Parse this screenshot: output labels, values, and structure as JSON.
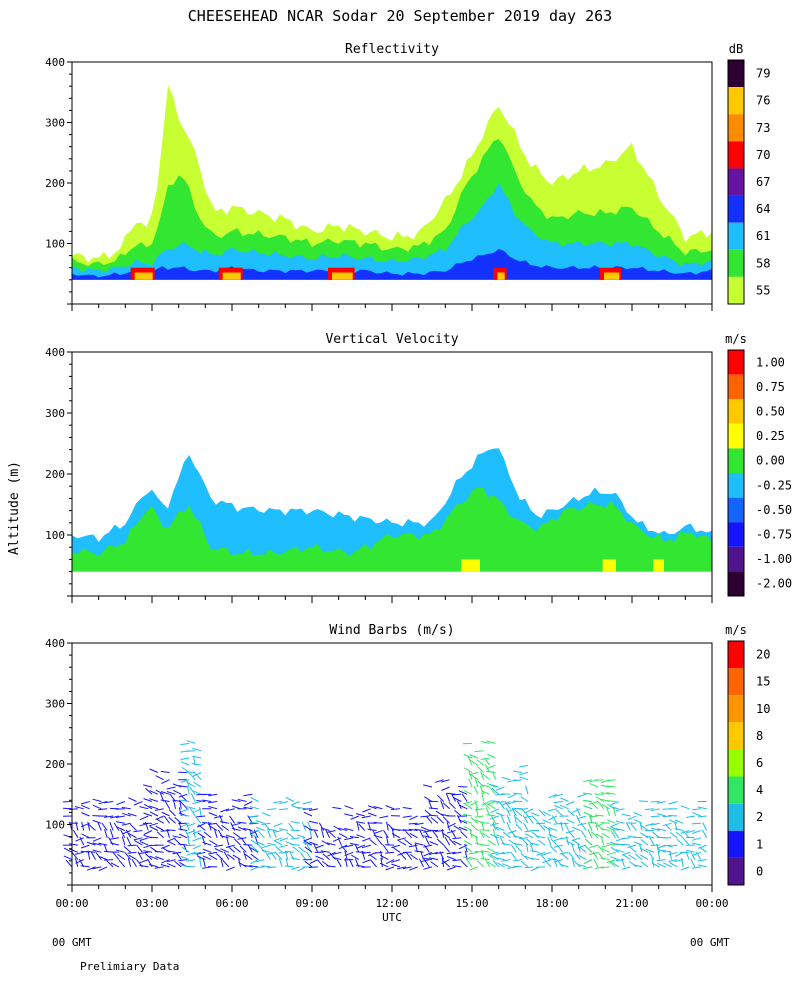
{
  "title": "CHEESEHEAD  NCAR Sodar  20 September 2019  day 263",
  "y_axis_label": "Altitude (m)",
  "x_axis_label": "UTC",
  "footer": {
    "left_gmt": "00 GMT",
    "right_gmt": "00 GMT",
    "note": "Prelimiary Data"
  },
  "colors": {
    "ink": "#000000",
    "background": "#ffffff"
  },
  "chart_data": [
    {
      "type": "heatmap",
      "title": "Reflectivity",
      "unit": "dB",
      "ylim": [
        0,
        400
      ],
      "xlim_hours": [
        0,
        24
      ],
      "y_ticks": [
        100,
        200,
        300,
        400
      ],
      "x_ticks": [
        "00:00",
        "03:00",
        "06:00",
        "09:00",
        "12:00",
        "15:00",
        "18:00",
        "21:00",
        "00:00"
      ],
      "colorbar_labels": [
        "55",
        "58",
        "61",
        "64",
        "67",
        "70",
        "73",
        "76",
        "79"
      ],
      "colorbar_colors": [
        "#c8ff32",
        "#32e632",
        "#1ebeff",
        "#1432ff",
        "#6414a0",
        "#ff0000",
        "#ff8c00",
        "#ffc800",
        "#2d0032"
      ],
      "columns": [
        {
          "t": 0,
          "tops": [
            80,
            70,
            60,
            50
          ]
        },
        {
          "t": 1,
          "tops": [
            75,
            65,
            55,
            45
          ]
        },
        {
          "t": 1.8,
          "tops": [
            90,
            75,
            60,
            50
          ]
        },
        {
          "t": 2.4,
          "tops": [
            140,
            100,
            70,
            55
          ]
        },
        {
          "t": 2.9,
          "tops": [
            120,
            90,
            65,
            50
          ]
        },
        {
          "t": 3.3,
          "tops": [
            230,
            140,
            80,
            60
          ]
        },
        {
          "t": 3.6,
          "tops": [
            360,
            190,
            90,
            60
          ]
        },
        {
          "t": 4.1,
          "tops": [
            300,
            220,
            100,
            60
          ]
        },
        {
          "t": 4.7,
          "tops": [
            240,
            150,
            90,
            55
          ]
        },
        {
          "t": 5.3,
          "tops": [
            150,
            110,
            80,
            55
          ]
        },
        {
          "t": 6.0,
          "tops": [
            160,
            120,
            90,
            60
          ]
        },
        {
          "t": 7.0,
          "tops": [
            150,
            115,
            85,
            55
          ]
        },
        {
          "t": 8.0,
          "tops": [
            140,
            110,
            80,
            55
          ]
        },
        {
          "t": 9.0,
          "tops": [
            120,
            100,
            75,
            55
          ]
        },
        {
          "t": 10.0,
          "tops": [
            130,
            105,
            80,
            55
          ]
        },
        {
          "t": 11.0,
          "tops": [
            120,
            100,
            75,
            55
          ]
        },
        {
          "t": 12.0,
          "tops": [
            110,
            90,
            70,
            50
          ]
        },
        {
          "t": 13.0,
          "tops": [
            115,
            95,
            75,
            50
          ]
        },
        {
          "t": 14.0,
          "tops": [
            170,
            120,
            90,
            55
          ]
        },
        {
          "t": 14.7,
          "tops": [
            220,
            190,
            130,
            70
          ]
        },
        {
          "t": 15.4,
          "tops": [
            280,
            240,
            160,
            80
          ]
        },
        {
          "t": 16.0,
          "tops": [
            330,
            280,
            200,
            90
          ]
        },
        {
          "t": 16.6,
          "tops": [
            280,
            220,
            150,
            75
          ]
        },
        {
          "t": 17.2,
          "tops": [
            230,
            170,
            120,
            65
          ]
        },
        {
          "t": 18.0,
          "tops": [
            200,
            140,
            100,
            60
          ]
        },
        {
          "t": 19.0,
          "tops": [
            220,
            150,
            100,
            60
          ]
        },
        {
          "t": 20.0,
          "tops": [
            230,
            150,
            100,
            60
          ]
        },
        {
          "t": 21.0,
          "tops": [
            260,
            160,
            100,
            60
          ]
        },
        {
          "t": 22.0,
          "tops": [
            180,
            120,
            80,
            55
          ]
        },
        {
          "t": 23.0,
          "tops": [
            110,
            85,
            65,
            50
          ]
        },
        {
          "t": 24.0,
          "tops": [
            120,
            90,
            70,
            55
          ]
        }
      ]
    },
    {
      "type": "heatmap",
      "title": "Vertical Velocity",
      "unit": "m/s",
      "ylim": [
        0,
        400
      ],
      "xlim_hours": [
        0,
        24
      ],
      "y_ticks": [
        100,
        200,
        300,
        400
      ],
      "x_ticks": [
        "00:00",
        "03:00",
        "06:00",
        "09:00",
        "12:00",
        "15:00",
        "18:00",
        "21:00",
        "00:00"
      ],
      "colorbar_labels": [
        "1.00",
        "0.75",
        "0.50",
        "0.25",
        "0.00",
        "-0.25",
        "-0.50",
        "-0.75",
        "-1.00",
        "-2.00"
      ],
      "colorbar_colors": [
        "#ff0000",
        "#ff6400",
        "#ffc800",
        "#ffff00",
        "#32e632",
        "#1ebeff",
        "#1464ff",
        "#1414ff",
        "#50148c",
        "#2d0032"
      ],
      "columns": [
        {
          "t": 0,
          "blue": 100,
          "green": 75
        },
        {
          "t": 1,
          "blue": 95,
          "green": 70
        },
        {
          "t": 2,
          "blue": 120,
          "green": 90
        },
        {
          "t": 2.9,
          "blue": 180,
          "green": 150
        },
        {
          "t": 3.5,
          "blue": 140,
          "green": 110
        },
        {
          "t": 4.4,
          "blue": 235,
          "green": 150
        },
        {
          "t": 5.2,
          "blue": 160,
          "green": 80
        },
        {
          "t": 6.2,
          "blue": 145,
          "green": 70
        },
        {
          "t": 7.5,
          "blue": 140,
          "green": 70
        },
        {
          "t": 9.0,
          "blue": 140,
          "green": 80
        },
        {
          "t": 10.5,
          "blue": 130,
          "green": 70
        },
        {
          "t": 12.0,
          "blue": 120,
          "green": 100
        },
        {
          "t": 13.5,
          "blue": 120,
          "green": 100
        },
        {
          "t": 14.5,
          "blue": 190,
          "green": 150
        },
        {
          "t": 15.3,
          "blue": 230,
          "green": 180
        },
        {
          "t": 15.9,
          "blue": 250,
          "green": 160
        },
        {
          "t": 16.8,
          "blue": 160,
          "green": 120
        },
        {
          "t": 17.5,
          "blue": 130,
          "green": 110
        },
        {
          "t": 18.5,
          "blue": 150,
          "green": 140
        },
        {
          "t": 19.5,
          "blue": 170,
          "green": 150
        },
        {
          "t": 20.3,
          "blue": 170,
          "green": 150
        },
        {
          "t": 21.2,
          "blue": 120,
          "green": 110
        },
        {
          "t": 22.2,
          "blue": 100,
          "green": 90
        },
        {
          "t": 23.2,
          "blue": 115,
          "green": 105
        },
        {
          "t": 24.0,
          "blue": 100,
          "green": 90
        }
      ]
    },
    {
      "type": "scatter",
      "title": "Wind Barbs (m/s)",
      "unit": "m/s",
      "ylim": [
        0,
        400
      ],
      "xlim_hours": [
        0,
        24
      ],
      "y_ticks": [
        100,
        200,
        300,
        400
      ],
      "x_ticks": [
        "00:00",
        "03:00",
        "06:00",
        "09:00",
        "12:00",
        "15:00",
        "18:00",
        "21:00",
        "00:00"
      ],
      "colorbar_labels": [
        "20",
        "15",
        "10",
        "8",
        "6",
        "4",
        "2",
        "1",
        "0"
      ],
      "colorbar_colors": [
        "#ff0000",
        "#ff6400",
        "#ff9600",
        "#ffc800",
        "#96ff00",
        "#32e664",
        "#1ebee6",
        "#1414ff",
        "#50148c"
      ],
      "segments": [
        {
          "t0": 0,
          "t1": 3,
          "top": 140,
          "speed": 1
        },
        {
          "t0": 3,
          "t1": 4.4,
          "top": 190,
          "speed": 1
        },
        {
          "t0": 4.4,
          "t1": 5,
          "top": 240,
          "speed": 2
        },
        {
          "t0": 5,
          "t1": 7,
          "top": 150,
          "speed": 1
        },
        {
          "t0": 7,
          "t1": 9,
          "top": 140,
          "speed": 2
        },
        {
          "t0": 9,
          "t1": 13.5,
          "top": 130,
          "speed": 1
        },
        {
          "t0": 13.5,
          "t1": 15,
          "top": 180,
          "speed": 1
        },
        {
          "t0": 15,
          "t1": 16,
          "top": 240,
          "speed": 4
        },
        {
          "t0": 16,
          "t1": 17.3,
          "top": 200,
          "speed": 2
        },
        {
          "t0": 17.3,
          "t1": 19.5,
          "top": 160,
          "speed": 2
        },
        {
          "t0": 19.5,
          "t1": 20.5,
          "top": 180,
          "speed": 4
        },
        {
          "t0": 20.5,
          "t1": 24,
          "top": 140,
          "speed": 2
        }
      ]
    }
  ]
}
